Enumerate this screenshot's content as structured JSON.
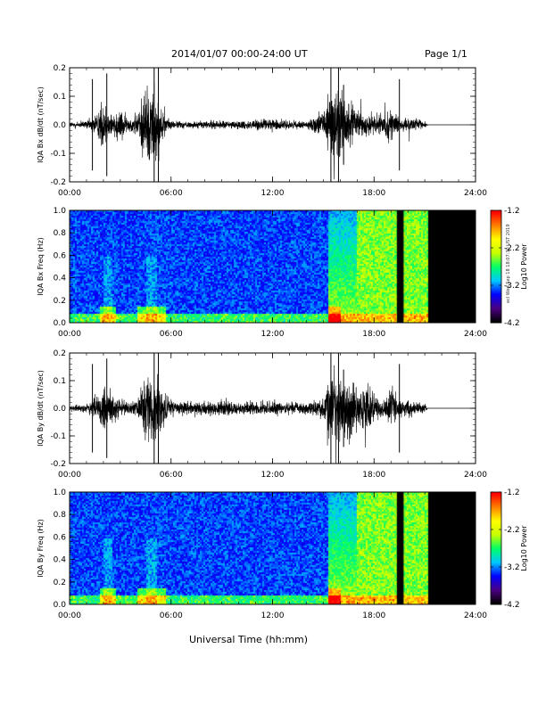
{
  "header": {
    "title": "2014/01/07  00:00-24:00 UT",
    "page": "Page 1/1"
  },
  "footer": {
    "xlabel": "Universal Time (hh:mm)",
    "stamp": "ecl Wed Sep 18 18:07:30 UST 2019"
  },
  "colors": {
    "spectrogram_background": "#2a2aa8",
    "data_gap": "#000000",
    "colorbar_stops": [
      "#000000",
      "#4b0082",
      "#0000ff",
      "#00c8ff",
      "#00ff66",
      "#c8ff00",
      "#ffff00",
      "#ff8000",
      "#ff0000"
    ]
  },
  "chart_data": [
    {
      "type": "line",
      "ylabel": "IQA Bx dB/dt (nT/sec)",
      "xlim": [
        0,
        24
      ],
      "ylim": [
        -0.2,
        0.2
      ],
      "yticks": [
        "-0.2",
        "-0.1",
        "0.0",
        "0.1",
        "0.2"
      ],
      "xticks": [
        "00:00",
        "06:00",
        "12:00",
        "18:00",
        "24:00"
      ],
      "series": [
        {
          "x": [
            0,
            1.0,
            1.5,
            2.0,
            2.5,
            3.0,
            3.5,
            4.0,
            4.5,
            5.0,
            5.5,
            6.0,
            7.0,
            8.0,
            9.0,
            10.0,
            11.0,
            12.0,
            13.0,
            14.0,
            15.0,
            15.5,
            16.0,
            16.5,
            17.0,
            17.5,
            18.0,
            18.5,
            19.0,
            19.5,
            20.0,
            20.5,
            21.0,
            21.2,
            24.0
          ],
          "amplitude": [
            0.015,
            0.02,
            0.05,
            0.12,
            0.06,
            0.08,
            0.03,
            0.06,
            0.2,
            0.2,
            0.06,
            0.02,
            0.015,
            0.02,
            0.02,
            0.02,
            0.025,
            0.03,
            0.02,
            0.015,
            0.06,
            0.2,
            0.2,
            0.12,
            0.07,
            0.05,
            0.06,
            0.04,
            0.08,
            0.03,
            0.03,
            0.03,
            0.02,
            0.0,
            0.0
          ]
        }
      ]
    },
    {
      "type": "heatmap",
      "ylabel": "IQA Bx Freq (Hz)",
      "xlim": [
        0,
        24
      ],
      "ylim": [
        0.0,
        1.0
      ],
      "yticks": [
        "0.0",
        "0.2",
        "0.4",
        "0.6",
        "0.8",
        "1.0"
      ],
      "xticks": [
        "00:00",
        "06:00",
        "12:00",
        "18:00",
        "24:00"
      ],
      "colorbar": {
        "label": "Log10 Power",
        "range": [
          -4.2,
          -1.2
        ],
        "ticks": [
          "-1.2",
          "-2.2",
          "-3.2",
          "-4.2"
        ]
      },
      "data_gaps": [
        [
          19.35,
          19.75
        ],
        [
          21.2,
          24.0
        ]
      ]
    },
    {
      "type": "line",
      "ylabel": "IQA By dB/dt (nT/sec)",
      "xlim": [
        0,
        24
      ],
      "ylim": [
        -0.2,
        0.2
      ],
      "yticks": [
        "-0.2",
        "-0.1",
        "0.0",
        "0.1",
        "0.2"
      ],
      "xticks": [
        "00:00",
        "06:00",
        "12:00",
        "18:00",
        "24:00"
      ],
      "series": [
        {
          "x": [
            0,
            1.0,
            1.5,
            2.0,
            2.5,
            3.0,
            3.5,
            4.0,
            4.5,
            5.0,
            5.5,
            6.0,
            7.0,
            8.0,
            9.0,
            10.0,
            11.0,
            12.0,
            13.0,
            14.0,
            15.0,
            15.5,
            16.0,
            16.5,
            17.0,
            17.5,
            18.0,
            18.5,
            19.0,
            19.5,
            20.0,
            20.5,
            21.0,
            21.2,
            24.0
          ],
          "amplitude": [
            0.015,
            0.02,
            0.06,
            0.12,
            0.1,
            0.05,
            0.03,
            0.05,
            0.15,
            0.2,
            0.08,
            0.04,
            0.03,
            0.04,
            0.04,
            0.03,
            0.035,
            0.04,
            0.03,
            0.03,
            0.05,
            0.2,
            0.14,
            0.17,
            0.1,
            0.12,
            0.07,
            0.04,
            0.1,
            0.04,
            0.04,
            0.03,
            0.02,
            0.0,
            0.0
          ]
        }
      ]
    },
    {
      "type": "heatmap",
      "ylabel": "IQA By Freq (Hz)",
      "xlim": [
        0,
        24
      ],
      "ylim": [
        0.0,
        1.0
      ],
      "yticks": [
        "0.0",
        "0.2",
        "0.4",
        "0.6",
        "0.8",
        "1.0"
      ],
      "xticks": [
        "00:00",
        "06:00",
        "12:00",
        "18:00",
        "24:00"
      ],
      "colorbar": {
        "label": "Log10 Power",
        "range": [
          -4.2,
          -1.2
        ],
        "ticks": [
          "-1.2",
          "-2.2",
          "-3.2",
          "-4.2"
        ]
      },
      "data_gaps": [
        [
          19.35,
          19.75
        ],
        [
          21.2,
          24.0
        ]
      ]
    }
  ]
}
